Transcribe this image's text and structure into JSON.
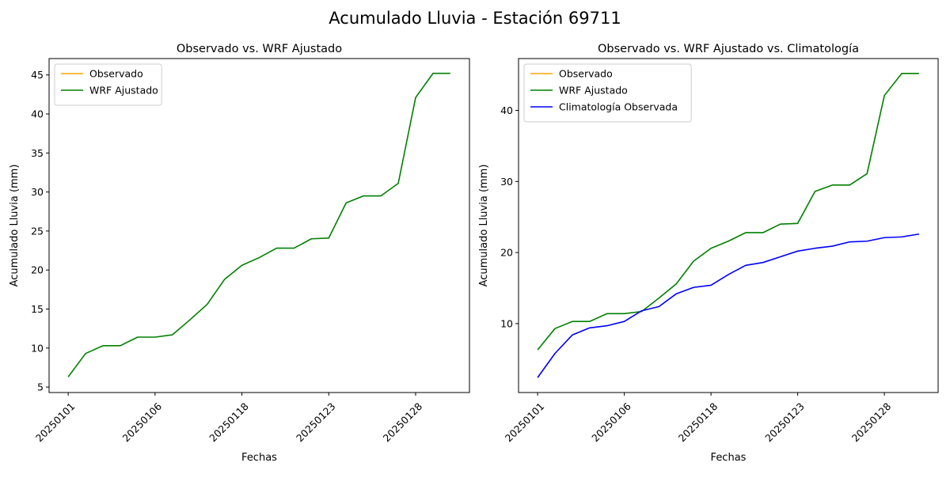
{
  "figure": {
    "suptitle": "Acumulado Lluvia - Estación 69711"
  },
  "colors": {
    "observado": "#ffa500",
    "wrf": "#008000",
    "climatologia": "#0000ff"
  },
  "chart_data": [
    {
      "type": "line",
      "title": "Observado vs. WRF Ajustado",
      "xlabel": "Fechas",
      "ylabel": "Acumulado Lluvia (mm)",
      "x_tick_labels": [
        "20250101",
        "20250106",
        "20250118",
        "20250123",
        "20250128"
      ],
      "x_tick_index": [
        0,
        5,
        10,
        15,
        20
      ],
      "ylim": [
        4.3,
        47.1
      ],
      "y_ticks": [
        5,
        10,
        15,
        20,
        25,
        30,
        35,
        40,
        45
      ],
      "legend": "top-left",
      "grid": false,
      "series": [
        {
          "name": "Observado",
          "color": "#ffa500",
          "values": []
        },
        {
          "name": "WRF Ajustado",
          "color": "#008000",
          "values": [
            6.3,
            9.3,
            10.3,
            10.3,
            11.4,
            11.4,
            11.7,
            13.6,
            15.6,
            18.8,
            20.6,
            21.6,
            22.8,
            22.8,
            24.0,
            24.1,
            28.6,
            29.5,
            29.5,
            31.1,
            42.1,
            45.2,
            45.2
          ]
        }
      ]
    },
    {
      "type": "line",
      "title": "Observado vs. WRF Ajustado vs. Climatología",
      "xlabel": "Fechas",
      "ylabel": "Acumulado Lluvia (mm)",
      "x_tick_labels": [
        "20250101",
        "20250106",
        "20250118",
        "20250123",
        "20250128"
      ],
      "x_tick_index": [
        0,
        5,
        10,
        15,
        20
      ],
      "ylim": [
        0.3,
        47.3
      ],
      "y_ticks": [
        10,
        20,
        30,
        40
      ],
      "legend": "top-left",
      "grid": false,
      "series": [
        {
          "name": "Observado",
          "color": "#ffa500",
          "values": []
        },
        {
          "name": "WRF Ajustado",
          "color": "#008000",
          "values": [
            6.3,
            9.3,
            10.3,
            10.3,
            11.4,
            11.4,
            11.7,
            13.6,
            15.6,
            18.8,
            20.6,
            21.6,
            22.8,
            22.8,
            24.0,
            24.1,
            28.6,
            29.5,
            29.5,
            31.1,
            42.1,
            45.2,
            45.2
          ]
        },
        {
          "name": "Climatología Observada",
          "color": "#0000ff",
          "values": [
            2.4,
            5.8,
            8.4,
            9.4,
            9.7,
            10.3,
            11.8,
            12.4,
            14.2,
            15.1,
            15.4,
            16.9,
            18.2,
            18.6,
            19.4,
            20.2,
            20.6,
            20.9,
            21.5,
            21.6,
            22.1,
            22.2,
            22.6
          ]
        }
      ]
    }
  ]
}
